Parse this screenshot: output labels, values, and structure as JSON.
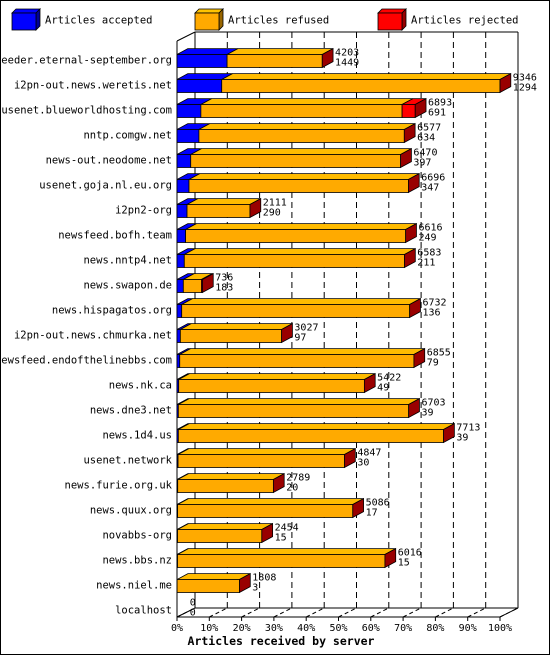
{
  "chart_data": {
    "type": "bar",
    "orientation": "horizontal",
    "stacked": true,
    "xlabel": "Articles received by server",
    "x_ticks": [
      "0%",
      "10%",
      "20%",
      "30%",
      "40%",
      "50%",
      "60%",
      "70%",
      "80%",
      "90%",
      "100%"
    ],
    "xlim": [
      0,
      9346
    ],
    "legend_position": "top",
    "series": [
      {
        "name": "Articles accepted",
        "color": "#0000ff"
      },
      {
        "name": "Articles refused",
        "color": "#ffaa00"
      },
      {
        "name": "Articles rejected",
        "color": "#ff0000"
      }
    ],
    "rows": [
      {
        "server": "feeder.eternal-september.org",
        "total": 4203,
        "accepted": 1449
      },
      {
        "server": "i2pn-out.news.weretis.net",
        "total": 9346,
        "accepted": 1294
      },
      {
        "server": "usenet.blueworldhosting.com",
        "total": 6893,
        "accepted": 691,
        "rejected": 380
      },
      {
        "server": "nntp.comgw.net",
        "total": 6577,
        "accepted": 634
      },
      {
        "server": "news-out.neodome.net",
        "total": 6470,
        "accepted": 397
      },
      {
        "server": "usenet.goja.nl.eu.org",
        "total": 6696,
        "accepted": 347
      },
      {
        "server": "i2pn2-org",
        "total": 2111,
        "accepted": 290
      },
      {
        "server": "newsfeed.bofh.team",
        "total": 6616,
        "accepted": 249
      },
      {
        "server": "news.nntp4.net",
        "total": 6583,
        "accepted": 211
      },
      {
        "server": "news.swapon.de",
        "total": 736,
        "accepted": 183,
        "rejected": 30
      },
      {
        "server": "news.hispagatos.org",
        "total": 6732,
        "accepted": 136
      },
      {
        "server": "i2pn-out.news.chmurka.net",
        "total": 3027,
        "accepted": 97
      },
      {
        "server": "newsfeed.endofthelinebbs.com",
        "total": 6855,
        "accepted": 79
      },
      {
        "server": "news.nk.ca",
        "total": 5422,
        "accepted": 49
      },
      {
        "server": "news.dne3.net",
        "total": 6703,
        "accepted": 39
      },
      {
        "server": "news.1d4.us",
        "total": 7713,
        "accepted": 39
      },
      {
        "server": "usenet.network",
        "total": 4847,
        "accepted": 30
      },
      {
        "server": "news.furie.org.uk",
        "total": 2789,
        "accepted": 20
      },
      {
        "server": "news.quux.org",
        "total": 5086,
        "accepted": 17
      },
      {
        "server": "novabbs-org",
        "total": 2454,
        "accepted": 15
      },
      {
        "server": "news.bbs.nz",
        "total": 6016,
        "accepted": 15
      },
      {
        "server": "news.niel.me",
        "total": 1808,
        "accepted": 3
      },
      {
        "server": "localhost",
        "total": 0,
        "accepted": 0
      }
    ]
  }
}
